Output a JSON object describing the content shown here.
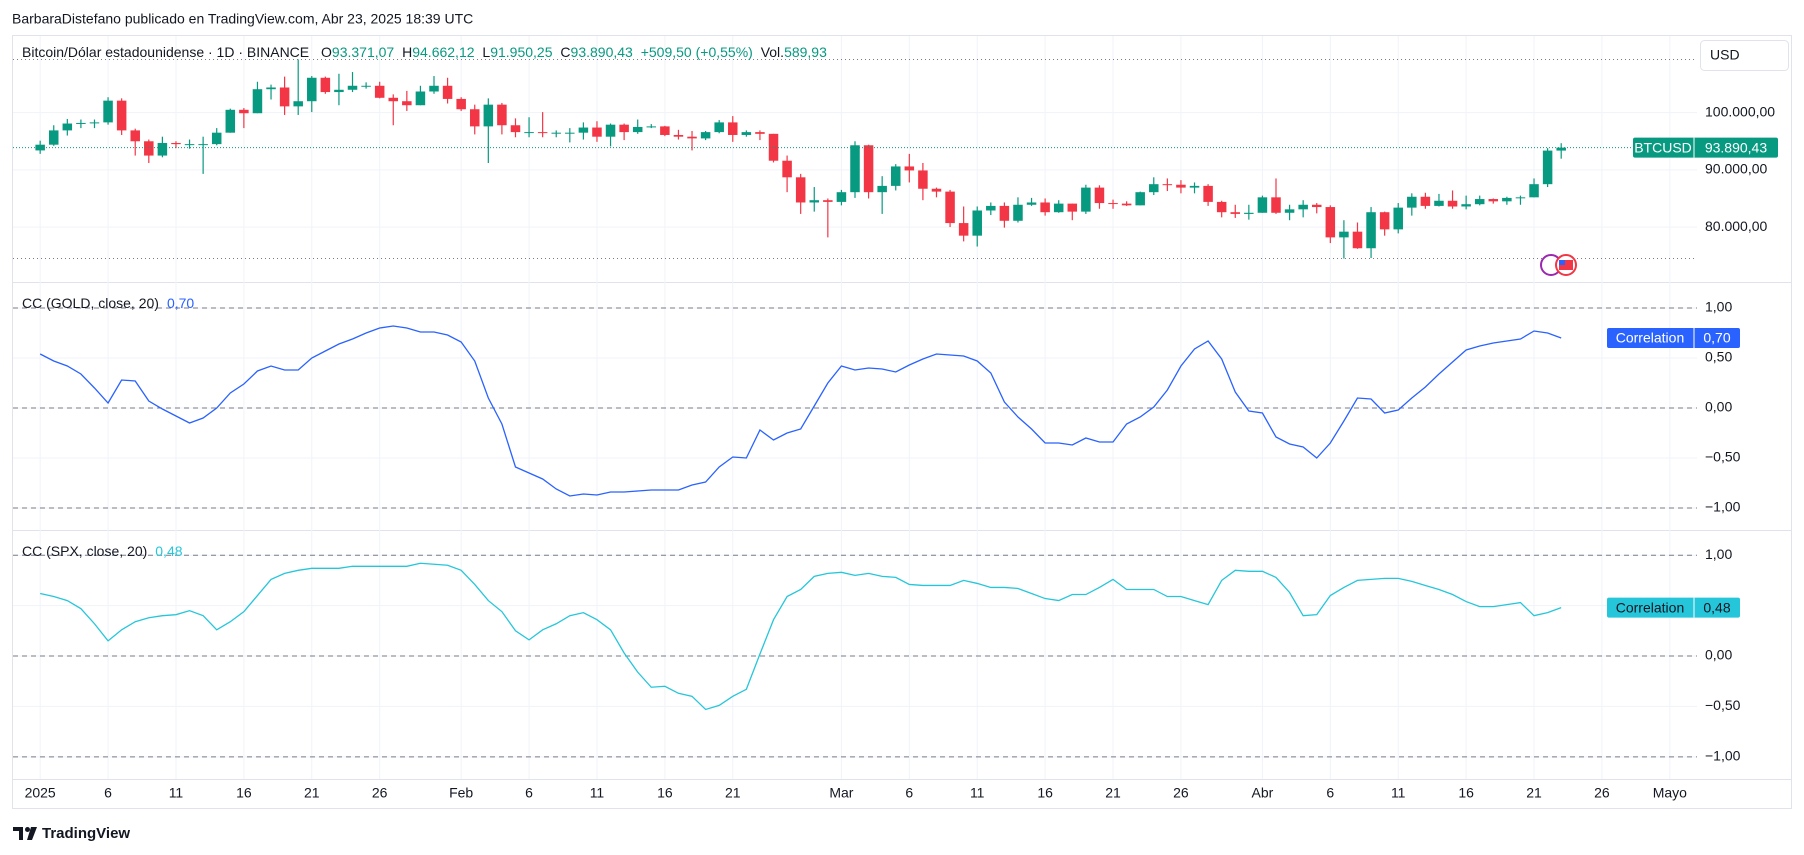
{
  "header": {
    "byline": "BarbaraDistefano publicado en TradingView.com, Abr 23, 2025 18:39 UTC",
    "brand": "TradingView"
  },
  "chart_data": [
    {
      "type": "candlestick",
      "title": "Bitcoin/Dólar estadounidense · 1D · BINANCE",
      "legend": {
        "open_prefix": "O",
        "open": "93.371,07",
        "high_prefix": "H",
        "high": "94.662,12",
        "low_prefix": "L",
        "low": "91.950,25",
        "close_prefix": "C",
        "close": "93.890,43",
        "change": "+509,50 (+0,55%)",
        "volume_prefix": "Vol.",
        "volume": "589,93"
      },
      "currency": "USD",
      "symbol": "BTCUSD",
      "last_value_label": "93.890,43",
      "up_color": "#089981",
      "down_color": "#f23645",
      "x": [
        "2025-01-01",
        "2025-01-02",
        "2025-01-03",
        "2025-01-04",
        "2025-01-05",
        "2025-01-06",
        "2025-01-07",
        "2025-01-08",
        "2025-01-09",
        "2025-01-10",
        "2025-01-11",
        "2025-01-12",
        "2025-01-13",
        "2025-01-14",
        "2025-01-15",
        "2025-01-16",
        "2025-01-17",
        "2025-01-18",
        "2025-01-19",
        "2025-01-20",
        "2025-01-21",
        "2025-01-22",
        "2025-01-23",
        "2025-01-24",
        "2025-01-25",
        "2025-01-26",
        "2025-01-27",
        "2025-01-28",
        "2025-01-29",
        "2025-01-30",
        "2025-01-31",
        "2025-02-01",
        "2025-02-02",
        "2025-02-03",
        "2025-02-04",
        "2025-02-05",
        "2025-02-06",
        "2025-02-07",
        "2025-02-08",
        "2025-02-09",
        "2025-02-10",
        "2025-02-11",
        "2025-02-12",
        "2025-02-13",
        "2025-02-14",
        "2025-02-15",
        "2025-02-16",
        "2025-02-17",
        "2025-02-18",
        "2025-02-19",
        "2025-02-20",
        "2025-02-21",
        "2025-02-22",
        "2025-02-23",
        "2025-02-24",
        "2025-02-25",
        "2025-02-26",
        "2025-02-27",
        "2025-02-28",
        "2025-03-01",
        "2025-03-02",
        "2025-03-03",
        "2025-03-04",
        "2025-03-05",
        "2025-03-06",
        "2025-03-07",
        "2025-03-08",
        "2025-03-09",
        "2025-03-10",
        "2025-03-11",
        "2025-03-12",
        "2025-03-13",
        "2025-03-14",
        "2025-03-15",
        "2025-03-16",
        "2025-03-17",
        "2025-03-18",
        "2025-03-19",
        "2025-03-20",
        "2025-03-21",
        "2025-03-22",
        "2025-03-23",
        "2025-03-24",
        "2025-03-25",
        "2025-03-26",
        "2025-03-27",
        "2025-03-28",
        "2025-03-29",
        "2025-03-30",
        "2025-03-31",
        "2025-04-01",
        "2025-04-02",
        "2025-04-03",
        "2025-04-04",
        "2025-04-05",
        "2025-04-06",
        "2025-04-07",
        "2025-04-08",
        "2025-04-09",
        "2025-04-10",
        "2025-04-11",
        "2025-04-12",
        "2025-04-13",
        "2025-04-14",
        "2025-04-15",
        "2025-04-16",
        "2025-04-17",
        "2025-04-18",
        "2025-04-19",
        "2025-04-20",
        "2025-04-21",
        "2025-04-22",
        "2025-04-23"
      ],
      "open": [
        93400,
        94400,
        96900,
        98100,
        98200,
        98300,
        102100,
        96900,
        95000,
        92500,
        94700,
        94500,
        94500,
        94500,
        96500,
        100500,
        99900,
        104100,
        104400,
        101100,
        102000,
        106100,
        103600,
        104000,
        104700,
        104700,
        102600,
        102000,
        101300,
        103700,
        104700,
        102400,
        100600,
        97600,
        101400,
        97800,
        96600,
        96600,
        96500,
        96500,
        96500,
        97400,
        95800,
        97900,
        96600,
        97500,
        97600,
        96100,
        95800,
        95500,
        96600,
        98300,
        96100,
        96600,
        96300,
        91600,
        88700,
        84300,
        84700,
        84400,
        86100,
        94300,
        86100,
        87200,
        90600,
        89900,
        86700,
        86200,
        80700,
        78500,
        82900,
        83700,
        81100,
        83900,
        84300,
        82600,
        84100,
        82700,
        86900,
        84200,
        84100,
        83800,
        86100,
        87500,
        87400,
        86900,
        87200,
        84400,
        82600,
        82300,
        82500,
        85200,
        82500,
        83100,
        83900,
        83500,
        78200,
        79200,
        76300,
        82600,
        79600,
        83400,
        85300,
        83700,
        84600,
        83600,
        84000,
        84900,
        84500,
        85100,
        85200,
        87500,
        93371.07
      ],
      "high": [
        95100,
        97800,
        98900,
        98800,
        98800,
        102700,
        102500,
        97200,
        95300,
        95800,
        95000,
        95300,
        95800,
        97300,
        100700,
        100800,
        105400,
        104900,
        106300,
        109300,
        106400,
        106300,
        106800,
        107100,
        105300,
        105400,
        103200,
        103800,
        104700,
        106400,
        106100,
        102700,
        101400,
        102500,
        101700,
        99000,
        99200,
        100100,
        96900,
        97300,
        98300,
        98500,
        98100,
        98100,
        98800,
        98000,
        97700,
        97000,
        96800,
        96800,
        98700,
        99400,
        96900,
        96900,
        96300,
        92500,
        89300,
        87000,
        85000,
        86500,
        95000,
        94400,
        88900,
        91000,
        92800,
        91200,
        86900,
        86500,
        83600,
        83600,
        84300,
        84300,
        85200,
        85100,
        85000,
        84700,
        84100,
        87400,
        87300,
        84800,
        84500,
        86200,
        88700,
        88500,
        88200,
        87800,
        87500,
        84600,
        83900,
        83900,
        85500,
        88500,
        83900,
        84700,
        84200,
        83800,
        81200,
        80800,
        83500,
        82700,
        84200,
        85900,
        86000,
        85800,
        86400,
        85500,
        85500,
        85000,
        85300,
        85500,
        88500,
        93800,
        94662.12
      ],
      "low": [
        92800,
        94200,
        96000,
        97300,
        97300,
        97900,
        96100,
        92500,
        91200,
        92200,
        93800,
        93700,
        89300,
        94300,
        96500,
        97300,
        99900,
        102300,
        99600,
        99600,
        100100,
        103300,
        101300,
        103600,
        104200,
        102500,
        97800,
        100300,
        101300,
        103300,
        101600,
        100300,
        96200,
        91200,
        96200,
        95700,
        95700,
        95700,
        95700,
        94800,
        95300,
        94900,
        94100,
        95200,
        96300,
        97300,
        95900,
        95300,
        93400,
        95200,
        96400,
        94900,
        95800,
        95200,
        91300,
        86100,
        82300,
        82700,
        78200,
        83800,
        85100,
        85000,
        82300,
        86400,
        87800,
        84700,
        85200,
        80000,
        77500,
        76600,
        82100,
        79900,
        80800,
        83700,
        82000,
        82500,
        81200,
        82300,
        83200,
        83200,
        83700,
        83800,
        85600,
        86300,
        85900,
        85900,
        83700,
        81700,
        81600,
        81300,
        82500,
        82300,
        81200,
        81700,
        82400,
        77200,
        74500,
        76200,
        74600,
        78500,
        78900,
        82000,
        83200,
        83600,
        83200,
        83100,
        83800,
        84100,
        83900,
        83900,
        85200,
        87000,
        91950.25
      ],
      "close": [
        94400,
        96900,
        98100,
        98200,
        98300,
        102100,
        96900,
        95000,
        92500,
        94700,
        94500,
        94500,
        94500,
        96500,
        100500,
        99900,
        104100,
        104400,
        101100,
        102000,
        106100,
        103600,
        104000,
        104700,
        104700,
        102600,
        102000,
        101300,
        103700,
        104700,
        102400,
        100600,
        97600,
        101400,
        97800,
        96600,
        96600,
        96500,
        96500,
        96500,
        97400,
        95800,
        97900,
        96600,
        97500,
        97600,
        96100,
        95800,
        95500,
        96600,
        98300,
        96100,
        96600,
        96300,
        91600,
        88700,
        84300,
        84700,
        84400,
        86100,
        94300,
        86100,
        87200,
        90600,
        89900,
        86700,
        86200,
        80700,
        78500,
        82900,
        83700,
        81100,
        83900,
        84300,
        82600,
        84100,
        82700,
        86900,
        84200,
        84100,
        83800,
        86100,
        87500,
        87400,
        86900,
        87200,
        84400,
        82600,
        82300,
        82500,
        85200,
        82500,
        83100,
        83900,
        83500,
        78200,
        79200,
        76300,
        82600,
        79600,
        83400,
        85300,
        83700,
        84600,
        83600,
        84000,
        84900,
        84500,
        85100,
        85200,
        87500,
        93371.07,
        93890.43
      ],
      "xlim": [
        "2024-12-30",
        "2025-05-03"
      ],
      "xticks": [
        {
          "value": "2025-01-01",
          "label": "2025"
        },
        {
          "value": "2025-01-06",
          "label": "6"
        },
        {
          "value": "2025-01-11",
          "label": "11"
        },
        {
          "value": "2025-01-16",
          "label": "16"
        },
        {
          "value": "2025-01-21",
          "label": "21"
        },
        {
          "value": "2025-01-26",
          "label": "26"
        },
        {
          "value": "2025-02-01",
          "label": "Feb"
        },
        {
          "value": "2025-02-06",
          "label": "6"
        },
        {
          "value": "2025-02-11",
          "label": "11"
        },
        {
          "value": "2025-02-16",
          "label": "16"
        },
        {
          "value": "2025-02-21",
          "label": "21"
        },
        {
          "value": "2025-03-01",
          "label": "Mar"
        },
        {
          "value": "2025-03-06",
          "label": "6"
        },
        {
          "value": "2025-03-11",
          "label": "11"
        },
        {
          "value": "2025-03-16",
          "label": "16"
        },
        {
          "value": "2025-03-21",
          "label": "21"
        },
        {
          "value": "2025-03-26",
          "label": "26"
        },
        {
          "value": "2025-04-01",
          "label": "Abr"
        },
        {
          "value": "2025-04-06",
          "label": "6"
        },
        {
          "value": "2025-04-11",
          "label": "11"
        },
        {
          "value": "2025-04-16",
          "label": "16"
        },
        {
          "value": "2025-04-21",
          "label": "21"
        },
        {
          "value": "2025-04-26",
          "label": "26"
        },
        {
          "value": "2025-05-01",
          "label": "Mayo"
        }
      ],
      "ylim": [
        70400,
        113400
      ],
      "yticks": [
        {
          "value": 80000,
          "label": "80.000,00"
        },
        {
          "value": 90000,
          "label": "90.000,00"
        },
        {
          "value": 100000,
          "label": "100.000,00"
        }
      ],
      "grid": true
    },
    {
      "type": "line",
      "title": "CC (GOLD, close, 20)",
      "last_value_label": "0,70",
      "series": [
        {
          "name": "Correlation",
          "color": "#2962ff",
          "values": [
            0.54,
            0.47,
            0.42,
            0.34,
            0.2,
            0.05,
            0.28,
            0.27,
            0.07,
            -0.01,
            -0.08,
            -0.15,
            -0.1,
            0.0,
            0.15,
            0.24,
            0.37,
            0.42,
            0.38,
            0.38,
            0.5,
            0.57,
            0.64,
            0.69,
            0.75,
            0.8,
            0.82,
            0.8,
            0.76,
            0.76,
            0.73,
            0.66,
            0.47,
            0.1,
            -0.16,
            -0.59,
            -0.65,
            -0.71,
            -0.81,
            -0.88,
            -0.86,
            -0.87,
            -0.84,
            -0.84,
            -0.83,
            -0.82,
            -0.82,
            -0.82,
            -0.77,
            -0.74,
            -0.59,
            -0.49,
            -0.5,
            -0.22,
            -0.32,
            -0.25,
            -0.21,
            0.02,
            0.25,
            0.42,
            0.38,
            0.4,
            0.39,
            0.36,
            0.43,
            0.49,
            0.54,
            0.53,
            0.52,
            0.47,
            0.35,
            0.06,
            -0.09,
            -0.21,
            -0.35,
            -0.35,
            -0.37,
            -0.3,
            -0.34,
            -0.34,
            -0.16,
            -0.09,
            0.01,
            0.18,
            0.42,
            0.59,
            0.67,
            0.49,
            0.16,
            -0.03,
            -0.05,
            -0.29,
            -0.36,
            -0.39,
            -0.5,
            -0.35,
            -0.13,
            0.1,
            0.09,
            -0.05,
            -0.02,
            0.1,
            0.21,
            0.34,
            0.46,
            0.58,
            0.62,
            0.65,
            0.67,
            0.69,
            0.77,
            0.75,
            0.7
          ]
        }
      ],
      "ylim": [
        -1.22,
        1.26
      ],
      "yticks": [
        {
          "value": 1,
          "label": "1,00"
        },
        {
          "value": 0.5,
          "label": "0,50"
        },
        {
          "value": 0,
          "label": "0,00"
        },
        {
          "value": -0.5,
          "label": "−0,50"
        },
        {
          "value": -1,
          "label": "−1,00"
        }
      ],
      "levels": [
        1,
        0,
        -1
      ],
      "badge_text_color": "#ffffff",
      "grid": true
    },
    {
      "type": "line",
      "title": "CC (SPX, close, 20)",
      "last_value_label": "0,48",
      "series": [
        {
          "name": "Correlation",
          "color": "#26c6da",
          "values": [
            0.62,
            0.59,
            0.55,
            0.47,
            0.32,
            0.15,
            0.26,
            0.34,
            0.38,
            0.4,
            0.41,
            0.45,
            0.4,
            0.26,
            0.34,
            0.44,
            0.6,
            0.76,
            0.82,
            0.85,
            0.87,
            0.87,
            0.87,
            0.89,
            0.89,
            0.89,
            0.89,
            0.89,
            0.92,
            0.91,
            0.9,
            0.85,
            0.71,
            0.55,
            0.44,
            0.25,
            0.16,
            0.26,
            0.32,
            0.4,
            0.43,
            0.36,
            0.26,
            0.03,
            -0.16,
            -0.31,
            -0.3,
            -0.37,
            -0.4,
            -0.53,
            -0.49,
            -0.4,
            -0.33,
            0.02,
            0.36,
            0.59,
            0.66,
            0.79,
            0.82,
            0.83,
            0.8,
            0.82,
            0.79,
            0.78,
            0.71,
            0.7,
            0.7,
            0.7,
            0.75,
            0.72,
            0.68,
            0.68,
            0.67,
            0.62,
            0.57,
            0.55,
            0.61,
            0.61,
            0.68,
            0.76,
            0.66,
            0.66,
            0.66,
            0.59,
            0.59,
            0.55,
            0.51,
            0.75,
            0.85,
            0.84,
            0.84,
            0.78,
            0.63,
            0.4,
            0.41,
            0.6,
            0.68,
            0.75,
            0.76,
            0.77,
            0.77,
            0.74,
            0.7,
            0.66,
            0.61,
            0.54,
            0.49,
            0.49,
            0.51,
            0.53,
            0.4,
            0.43,
            0.48
          ]
        }
      ],
      "ylim": [
        -1.22,
        1.25
      ],
      "yticks": [
        {
          "value": 1,
          "label": "1,00"
        },
        {
          "value": 0.5,
          "label": "0,50"
        },
        {
          "value": 0,
          "label": "0,00"
        },
        {
          "value": -0.5,
          "label": "−0,50"
        },
        {
          "value": -1,
          "label": "−1,00"
        }
      ],
      "levels": [
        1,
        0,
        -1
      ],
      "badge_text_color": "#131722",
      "grid": true
    }
  ]
}
